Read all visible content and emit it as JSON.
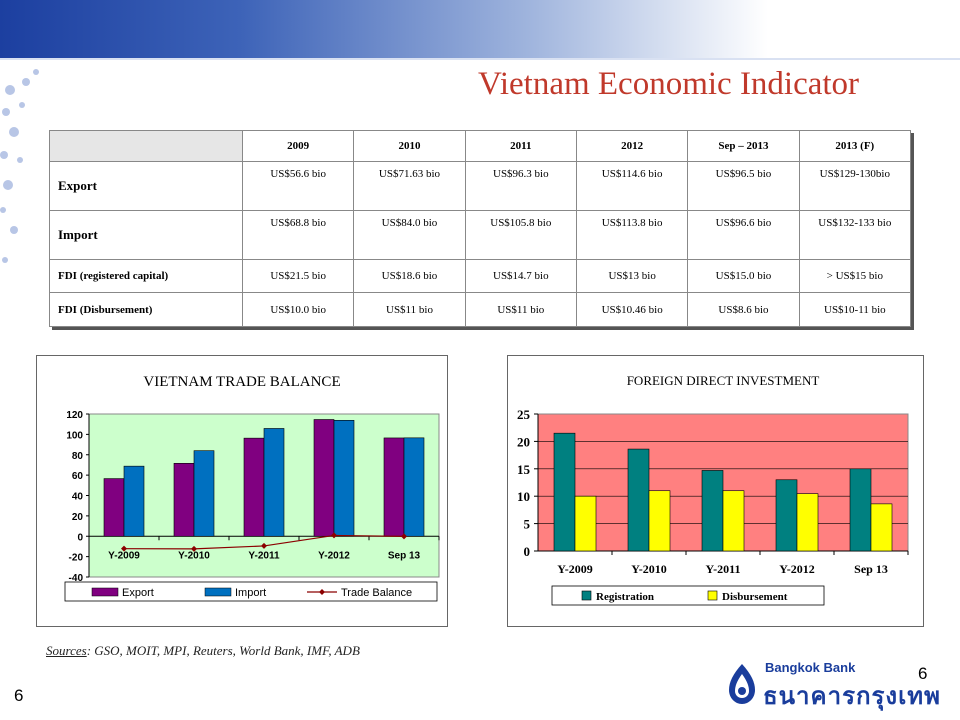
{
  "title": "Vietnam Economic Indicator",
  "table": {
    "headers": [
      "",
      "2009",
      "2010",
      "2011",
      "2012",
      "Sep – 2013",
      "2013 (F)"
    ],
    "rows": [
      {
        "label": "Export",
        "values": [
          "US$56.6 bio",
          "US$71.63 bio",
          "US$96.3 bio",
          "US$114.6 bio",
          "US$96.5 bio",
          "US$129-130bio"
        ]
      },
      {
        "label": "Import",
        "values": [
          "US$68.8 bio",
          "US$84.0 bio",
          "US$105.8 bio",
          "US$113.8 bio",
          "US$96.6 bio",
          "US$132-133 bio"
        ]
      },
      {
        "label": "FDI (registered capital)",
        "values": [
          "US$21.5 bio",
          "US$18.6 bio",
          "US$14.7 bio",
          "US$13 bio",
          "US$15.0 bio",
          "> US$15 bio"
        ]
      },
      {
        "label": "FDI (Disbursement)",
        "values": [
          "US$10.0 bio",
          "US$11 bio",
          "US$11 bio",
          "US$10.46 bio",
          "US$8.6 bio",
          "US$10-11 bio"
        ]
      }
    ]
  },
  "chart_data": [
    {
      "type": "bar",
      "title": "VIETNAM TRADE BALANCE",
      "categories": [
        "Y-2009",
        "Y-2010",
        "Y-2011",
        "Y-2012",
        "Sep 13"
      ],
      "ylim": [
        -40,
        120
      ],
      "yticks": [
        "120",
        "100",
        "80",
        "60",
        "40",
        "20",
        "0",
        "-20",
        "-40"
      ],
      "grid": false,
      "legend": "bottom",
      "series": [
        {
          "name": "Export",
          "type": "bar",
          "color": "#800080",
          "values": [
            56.6,
            71.6,
            96.3,
            114.6,
            96.5
          ]
        },
        {
          "name": "Import",
          "type": "bar",
          "color": "#0070c0",
          "values": [
            68.8,
            84.0,
            105.8,
            113.8,
            96.6
          ]
        },
        {
          "name": "Trade Balance",
          "type": "line",
          "color": "#8b0000",
          "values": [
            -12.2,
            -12.4,
            -9.5,
            0.8,
            -0.1
          ]
        }
      ],
      "background": "#ccffcc"
    },
    {
      "type": "bar",
      "title": "FOREIGN DIRECT INVESTMENT",
      "categories": [
        "Y-2009",
        "Y-2010",
        "Y-2011",
        "Y-2012",
        "Sep 13"
      ],
      "ylim": [
        0,
        25
      ],
      "yticks": [
        "25",
        "20",
        "15",
        "10",
        "5",
        "0"
      ],
      "grid": true,
      "legend": "bottom",
      "series": [
        {
          "name": "Registration",
          "color": "#008080",
          "values": [
            21.5,
            18.6,
            14.7,
            13.0,
            15.0
          ]
        },
        {
          "name": "Disbursement",
          "color": "#ffff00",
          "values": [
            10.0,
            11.0,
            11.0,
            10.46,
            8.6
          ]
        }
      ],
      "background": "#ff8080"
    }
  ],
  "sources": {
    "label": "Sources",
    "text": ": GSO, MOIT, MPI, Reuters, World Bank, IMF, ADB"
  },
  "page_number": "6",
  "logo": {
    "english": "Bangkok Bank",
    "thai": "ธนาคารกรุงเทพ"
  }
}
